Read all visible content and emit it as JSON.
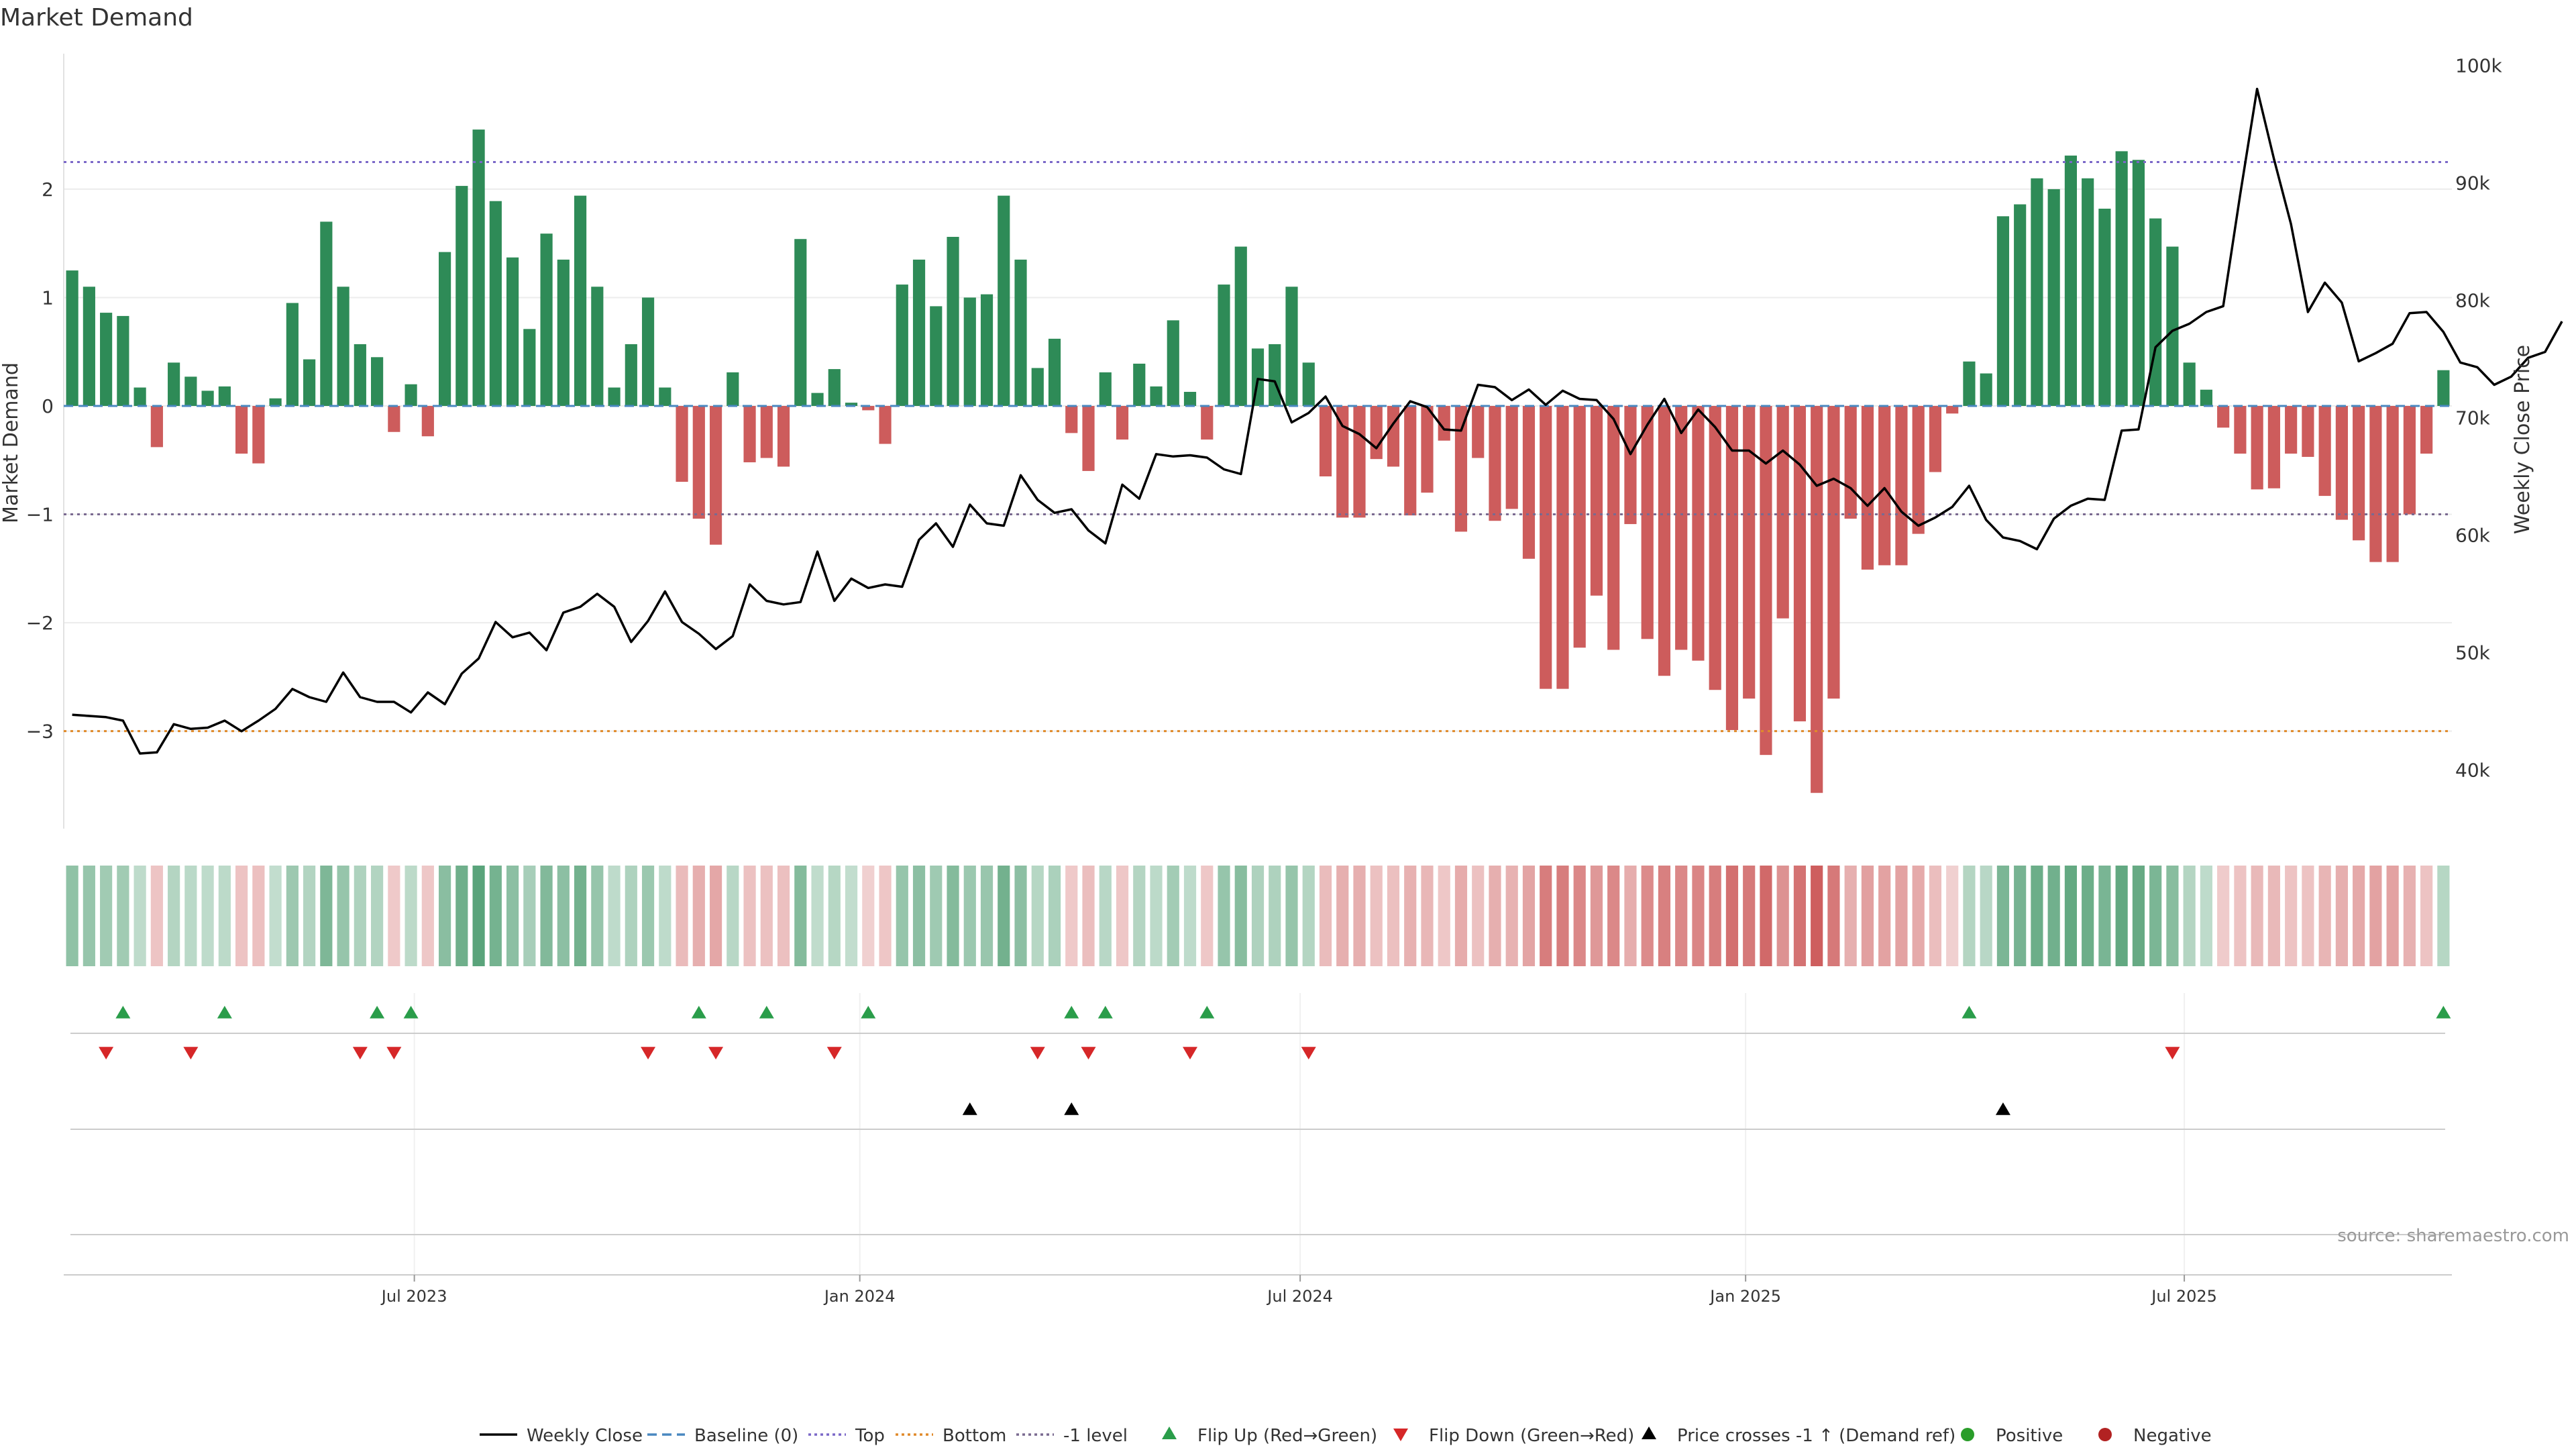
{
  "chart_data": {
    "type": "bar",
    "title": "Market Demand",
    "ylabel_left": "Market Demand",
    "ylabel_right": "Weekly Close Price",
    "ylim_left": [
      -3.9,
      3.25
    ],
    "ylim_right": [
      35000,
      101000
    ],
    "y_ticks_left": [
      2,
      1,
      0,
      -1,
      -2,
      -3
    ],
    "y_tick_labels_left": [
      "2",
      "1",
      "0",
      "−1",
      "−2",
      "−3"
    ],
    "y_ticks_right": [
      40000,
      50000,
      60000,
      70000,
      80000,
      90000,
      100000
    ],
    "y_tick_labels_right": [
      "40k",
      "50k",
      "60k",
      "70k",
      "80k",
      "90k",
      "100k"
    ],
    "x_ticks": [
      20.2,
      46.5,
      72.5,
      98.8,
      124.7
    ],
    "x_tick_labels": [
      "Jul 2023",
      "Jan 2024",
      "Jul 2024",
      "Jan 2025",
      "Jul 2025"
    ],
    "reference_lines": {
      "top": 2.25,
      "minus_one": -1.0,
      "bottom": -3.0,
      "baseline": 0
    },
    "demand_values": [
      1.25,
      1.1,
      0.86,
      0.83,
      0.17,
      -0.38,
      0.4,
      0.27,
      0.14,
      0.18,
      -0.44,
      -0.53,
      0.07,
      0.95,
      0.43,
      1.7,
      1.1,
      0.57,
      0.45,
      -0.24,
      0.2,
      -0.28,
      1.42,
      2.03,
      2.55,
      1.89,
      1.37,
      0.71,
      1.59,
      1.35,
      1.94,
      1.1,
      0.17,
      0.57,
      1.0,
      0.17,
      -0.7,
      -1.04,
      -1.28,
      0.31,
      -0.52,
      -0.48,
      -0.56,
      1.54,
      0.12,
      0.34,
      0.03,
      -0.04,
      -0.35,
      1.12,
      1.35,
      0.92,
      1.56,
      1.0,
      1.03,
      1.94,
      1.35,
      0.35,
      0.62,
      -0.25,
      -0.6,
      0.31,
      -0.31,
      0.39,
      0.18,
      0.79,
      0.13,
      -0.31,
      1.12,
      1.47,
      0.53,
      0.57,
      1.1,
      0.4,
      -0.65,
      -1.03,
      -1.03,
      -0.49,
      -0.56,
      -1.01,
      -0.8,
      -0.32,
      -1.16,
      -0.48,
      -1.06,
      -0.95,
      -1.41,
      -2.61,
      -2.61,
      -2.23,
      -1.75,
      -2.25,
      -1.09,
      -2.15,
      -2.49,
      -2.25,
      -2.35,
      -2.62,
      -2.99,
      -2.7,
      -3.22,
      -1.96,
      -2.91,
      -3.57,
      -2.7,
      -1.04,
      -1.51,
      -1.47,
      -1.47,
      -1.18,
      -0.61,
      -0.07,
      0.41,
      0.3,
      1.75,
      1.86,
      2.1,
      2.0,
      2.31,
      2.1,
      1.82,
      2.35,
      2.27,
      1.73,
      1.47,
      0.4,
      0.15,
      -0.2,
      -0.44,
      -0.77,
      -0.76,
      -0.44,
      -0.47,
      -0.83,
      -1.05,
      -1.24,
      -1.44,
      -1.44,
      -1.0,
      -0.44,
      0.33
    ],
    "weekly_close": [
      44700,
      44600,
      44500,
      44200,
      41400,
      41500,
      43900,
      43500,
      43600,
      44200,
      43300,
      44200,
      45200,
      46900,
      46200,
      45800,
      48300,
      46200,
      45800,
      45800,
      44900,
      46600,
      45600,
      48200,
      49500,
      52600,
      51300,
      51700,
      50200,
      53400,
      53900,
      55000,
      53900,
      50900,
      52700,
      55200,
      52600,
      51600,
      50300,
      51400,
      55800,
      54400,
      54100,
      54300,
      58600,
      54400,
      56300,
      55500,
      55800,
      55600,
      59600,
      61000,
      59000,
      62600,
      61000,
      60800,
      65100,
      63000,
      61900,
      62200,
      60400,
      59300,
      64300,
      63100,
      66900,
      66700,
      66800,
      66600,
      65600,
      65200,
      73300,
      73100,
      69600,
      70400,
      71800,
      69300,
      68600,
      67400,
      69500,
      71400,
      70900,
      69000,
      68900,
      72800,
      72600,
      71500,
      72400,
      71100,
      72300,
      71600,
      71500,
      69900,
      66900,
      69400,
      71600,
      68700,
      70700,
      69200,
      67200,
      67200,
      66100,
      67200,
      66000,
      64200,
      64800,
      64000,
      62500,
      64000,
      62000,
      60800,
      61500,
      62400,
      64200,
      61300,
      59800,
      59500,
      58800,
      61400,
      62500,
      63100,
      63000,
      68900,
      69000,
      76000,
      77400,
      78000,
      79000,
      79500,
      89000,
      98000,
      92000,
      86500,
      79000,
      81500,
      79800,
      74800,
      75500,
      76300,
      78900,
      79000,
      77300,
      74700,
      74300,
      72800,
      73500,
      75100,
      75600,
      78200
    ]
  },
  "heatmap_strip": {
    "label": "demand-intensity-strip"
  },
  "event_rows": {
    "flip_up": [
      3,
      9,
      18,
      20,
      37,
      41,
      47,
      59,
      61,
      67,
      112,
      140
    ],
    "flip_down": [
      2,
      7,
      17,
      19,
      34,
      38,
      45,
      57,
      60,
      66,
      73,
      124
    ],
    "price_cross": [
      53,
      59,
      114
    ]
  },
  "colors": {
    "positive": "#2e8b57",
    "negative": "#cd5c5c",
    "price_line": "#000000",
    "top_line": "#7b68c8",
    "bottom_line": "#e08a2a",
    "minus_one_line": "#7a6a90",
    "baseline_line": "#4a88c0",
    "flip_up_marker": "#2a9d4a",
    "flip_down_marker": "#d62728",
    "price_cross_marker": "#000000",
    "positive_dot": "#2a9d2a",
    "negative_dot": "#b22222"
  },
  "legend": [
    {
      "label": "Weekly Close",
      "kind": "line",
      "color": "#000000",
      "dash": "solid"
    },
    {
      "label": "Baseline (0)",
      "kind": "line",
      "color": "#4a88c0",
      "dash": "dash"
    },
    {
      "label": "Top",
      "kind": "line",
      "color": "#7b68c8",
      "dash": "dot"
    },
    {
      "label": "Bottom",
      "kind": "line",
      "color": "#e08a2a",
      "dash": "dot"
    },
    {
      "label": "-1 level",
      "kind": "line",
      "color": "#7a6a90",
      "dash": "dot"
    },
    {
      "label": "Flip Up (Red→Green)",
      "kind": "tri-up",
      "color": "#2a9d4a"
    },
    {
      "label": "Flip Down (Green→Red)",
      "kind": "tri-down",
      "color": "#d62728"
    },
    {
      "label": "Price crosses -1 ↑ (Demand ref)",
      "kind": "tri-up",
      "color": "#000000"
    },
    {
      "label": "Positive",
      "kind": "dot",
      "color": "#2a9d2a"
    },
    {
      "label": "Negative",
      "kind": "dot",
      "color": "#b22222"
    }
  ],
  "source_text": "source: sharemaestro.com"
}
